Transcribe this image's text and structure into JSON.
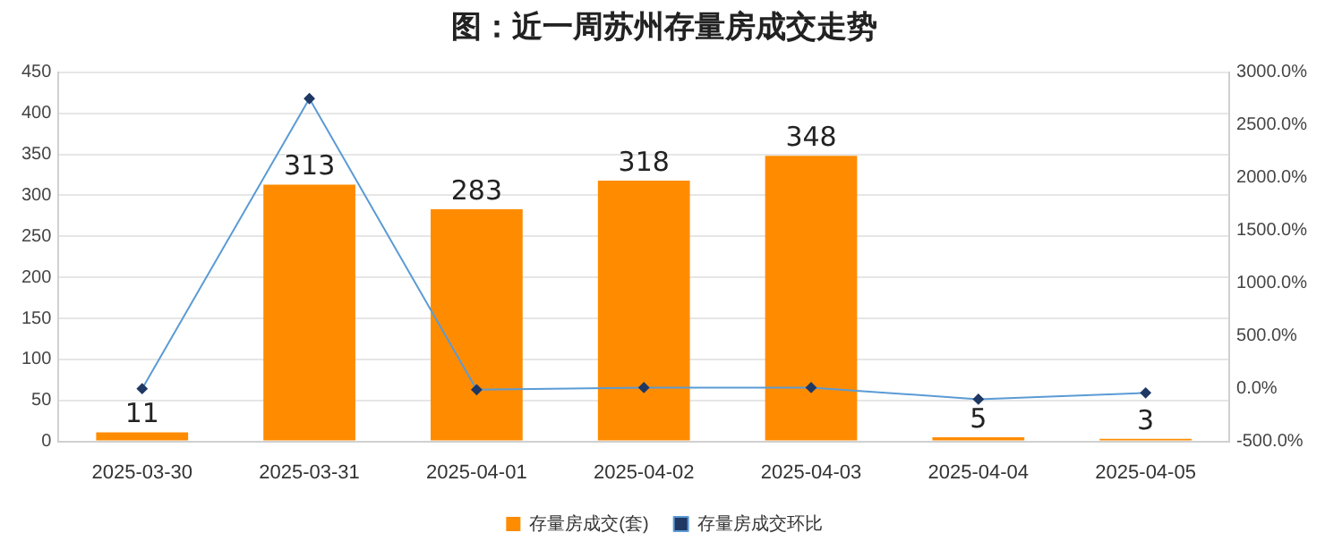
{
  "chart_data": {
    "type": "bar",
    "title": "图：近一周苏州存量房成交走势",
    "categories": [
      "2025-03-30",
      "2025-03-31",
      "2025-04-01",
      "2025-04-02",
      "2025-04-03",
      "2025-04-04",
      "2025-04-05"
    ],
    "series": [
      {
        "name": "存量房成交(套)",
        "color": "#ff8c00",
        "values": [
          11,
          313,
          283,
          318,
          348,
          5,
          3
        ],
        "value_labels": [
          "11",
          "313",
          "283",
          "318",
          "348",
          "5",
          "3"
        ]
      },
      {
        "name": "存量房成交环比",
        "type": "line",
        "axis": "y2",
        "color": "#5b9bd5",
        "values": [
          0,
          2750,
          -10,
          10,
          10,
          -100,
          -40
        ]
      }
    ],
    "ylim": [
      0,
      450
    ],
    "yticks": [
      0,
      50,
      100,
      150,
      200,
      250,
      300,
      350,
      400,
      450
    ],
    "y2lim": [
      -500,
      3000
    ],
    "y2ticks": [
      {
        "value": -500,
        "label": "-500.0%"
      },
      {
        "value": 0,
        "label": "0.0%"
      },
      {
        "value": 500,
        "label": "500.0%"
      },
      {
        "value": 1000,
        "label": "1000.0%"
      },
      {
        "value": 1500,
        "label": "1500.0%"
      },
      {
        "value": 2000,
        "label": "2000.0%"
      },
      {
        "value": 2500,
        "label": "2500.0%"
      },
      {
        "value": 3000,
        "label": "3000.0%"
      }
    ],
    "grid": "y",
    "legend": "bottom",
    "marker": "diamond",
    "line_style": "solid"
  }
}
